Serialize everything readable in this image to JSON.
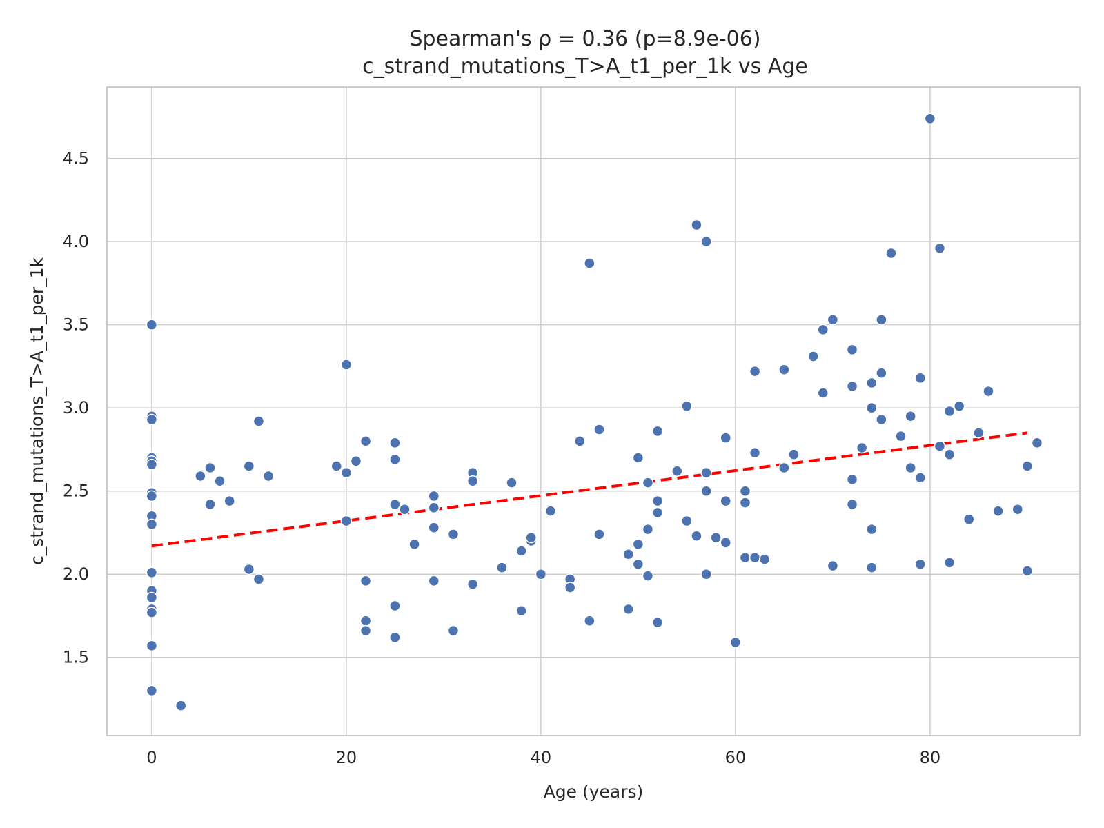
{
  "chart_data": {
    "type": "scatter",
    "title_line1": "Spearman's ρ = 0.36 (p=8.9e-06)",
    "title_line2": "c_strand_mutations_T>A_t1_per_1k vs Age",
    "xlabel": "Age (years)",
    "ylabel": "c_strand_mutations_T>A_t1_per_1k",
    "xlim": [
      -4.6,
      95.4
    ],
    "ylim": [
      1.03,
      4.93
    ],
    "xticks": [
      0,
      20,
      40,
      60,
      80
    ],
    "yticks": [
      1.5,
      2.0,
      2.5,
      3.0,
      3.5,
      4.0,
      4.5
    ],
    "grid": true,
    "point_color": "#4c72b0",
    "trend_color": "#ff0000",
    "trend": {
      "x": [
        0,
        90
      ],
      "y": [
        2.17,
        2.85
      ]
    },
    "points": [
      [
        0,
        3.5
      ],
      [
        0,
        2.95
      ],
      [
        0,
        2.93
      ],
      [
        0,
        2.7
      ],
      [
        0,
        2.68
      ],
      [
        0,
        2.66
      ],
      [
        0,
        2.49
      ],
      [
        0,
        2.47
      ],
      [
        0,
        2.35
      ],
      [
        0,
        2.3
      ],
      [
        0,
        2.01
      ],
      [
        0,
        1.9
      ],
      [
        0,
        1.86
      ],
      [
        0,
        1.79
      ],
      [
        0,
        1.77
      ],
      [
        0,
        1.57
      ],
      [
        0,
        1.3
      ],
      [
        3,
        1.21
      ],
      [
        5,
        2.59
      ],
      [
        6,
        2.64
      ],
      [
        6,
        2.42
      ],
      [
        7,
        2.56
      ],
      [
        8,
        2.44
      ],
      [
        10,
        2.65
      ],
      [
        10,
        2.03
      ],
      [
        11,
        2.92
      ],
      [
        11,
        1.97
      ],
      [
        12,
        2.59
      ],
      [
        19,
        2.65
      ],
      [
        20,
        3.26
      ],
      [
        20,
        2.61
      ],
      [
        20,
        2.32
      ],
      [
        21,
        2.68
      ],
      [
        22,
        2.8
      ],
      [
        22,
        1.96
      ],
      [
        22,
        1.72
      ],
      [
        22,
        1.66
      ],
      [
        25,
        2.79
      ],
      [
        25,
        2.69
      ],
      [
        25,
        2.42
      ],
      [
        25,
        1.81
      ],
      [
        25,
        1.62
      ],
      [
        26,
        2.39
      ],
      [
        27,
        2.18
      ],
      [
        29,
        2.47
      ],
      [
        29,
        2.4
      ],
      [
        29,
        2.28
      ],
      [
        29,
        1.96
      ],
      [
        31,
        2.24
      ],
      [
        31,
        1.66
      ],
      [
        33,
        2.61
      ],
      [
        33,
        2.56
      ],
      [
        33,
        1.94
      ],
      [
        36,
        2.04
      ],
      [
        37,
        2.55
      ],
      [
        38,
        2.14
      ],
      [
        38,
        1.78
      ],
      [
        39,
        2.2
      ],
      [
        39,
        2.22
      ],
      [
        40,
        2.0
      ],
      [
        41,
        2.38
      ],
      [
        43,
        1.97
      ],
      [
        43,
        1.92
      ],
      [
        44,
        2.8
      ],
      [
        45,
        3.87
      ],
      [
        45,
        1.72
      ],
      [
        46,
        2.87
      ],
      [
        46,
        2.24
      ],
      [
        49,
        2.12
      ],
      [
        49,
        1.79
      ],
      [
        50,
        2.7
      ],
      [
        50,
        2.18
      ],
      [
        50,
        2.06
      ],
      [
        51,
        2.55
      ],
      [
        51,
        2.27
      ],
      [
        51,
        1.99
      ],
      [
        52,
        2.86
      ],
      [
        52,
        2.44
      ],
      [
        52,
        2.37
      ],
      [
        52,
        1.71
      ],
      [
        54,
        2.62
      ],
      [
        55,
        3.01
      ],
      [
        55,
        2.32
      ],
      [
        56,
        4.1
      ],
      [
        56,
        2.23
      ],
      [
        57,
        4.0
      ],
      [
        57,
        2.61
      ],
      [
        57,
        2.5
      ],
      [
        57,
        2.0
      ],
      [
        58,
        2.22
      ],
      [
        59,
        2.82
      ],
      [
        59,
        2.44
      ],
      [
        59,
        2.19
      ],
      [
        60,
        1.59
      ],
      [
        61,
        2.5
      ],
      [
        61,
        2.43
      ],
      [
        61,
        2.1
      ],
      [
        62,
        3.22
      ],
      [
        62,
        2.73
      ],
      [
        62,
        2.1
      ],
      [
        63,
        2.09
      ],
      [
        65,
        3.23
      ],
      [
        65,
        2.64
      ],
      [
        66,
        2.72
      ],
      [
        68,
        3.31
      ],
      [
        69,
        3.47
      ],
      [
        69,
        3.09
      ],
      [
        70,
        3.53
      ],
      [
        70,
        2.05
      ],
      [
        72,
        3.35
      ],
      [
        72,
        3.13
      ],
      [
        72,
        2.57
      ],
      [
        72,
        2.42
      ],
      [
        73,
        2.76
      ],
      [
        74,
        3.15
      ],
      [
        74,
        3.0
      ],
      [
        74,
        2.27
      ],
      [
        74,
        2.04
      ],
      [
        75,
        3.53
      ],
      [
        75,
        3.21
      ],
      [
        75,
        2.93
      ],
      [
        76,
        3.93
      ],
      [
        77,
        2.83
      ],
      [
        78,
        2.95
      ],
      [
        78,
        2.64
      ],
      [
        79,
        3.18
      ],
      [
        79,
        2.58
      ],
      [
        79,
        2.06
      ],
      [
        80,
        4.74
      ],
      [
        81,
        3.96
      ],
      [
        81,
        2.77
      ],
      [
        82,
        2.98
      ],
      [
        82,
        2.72
      ],
      [
        82,
        2.07
      ],
      [
        83,
        3.01
      ],
      [
        84,
        2.33
      ],
      [
        85,
        2.85
      ],
      [
        86,
        3.1
      ],
      [
        87,
        2.38
      ],
      [
        89,
        2.39
      ],
      [
        90,
        2.65
      ],
      [
        90,
        2.02
      ],
      [
        91,
        2.79
      ]
    ]
  }
}
